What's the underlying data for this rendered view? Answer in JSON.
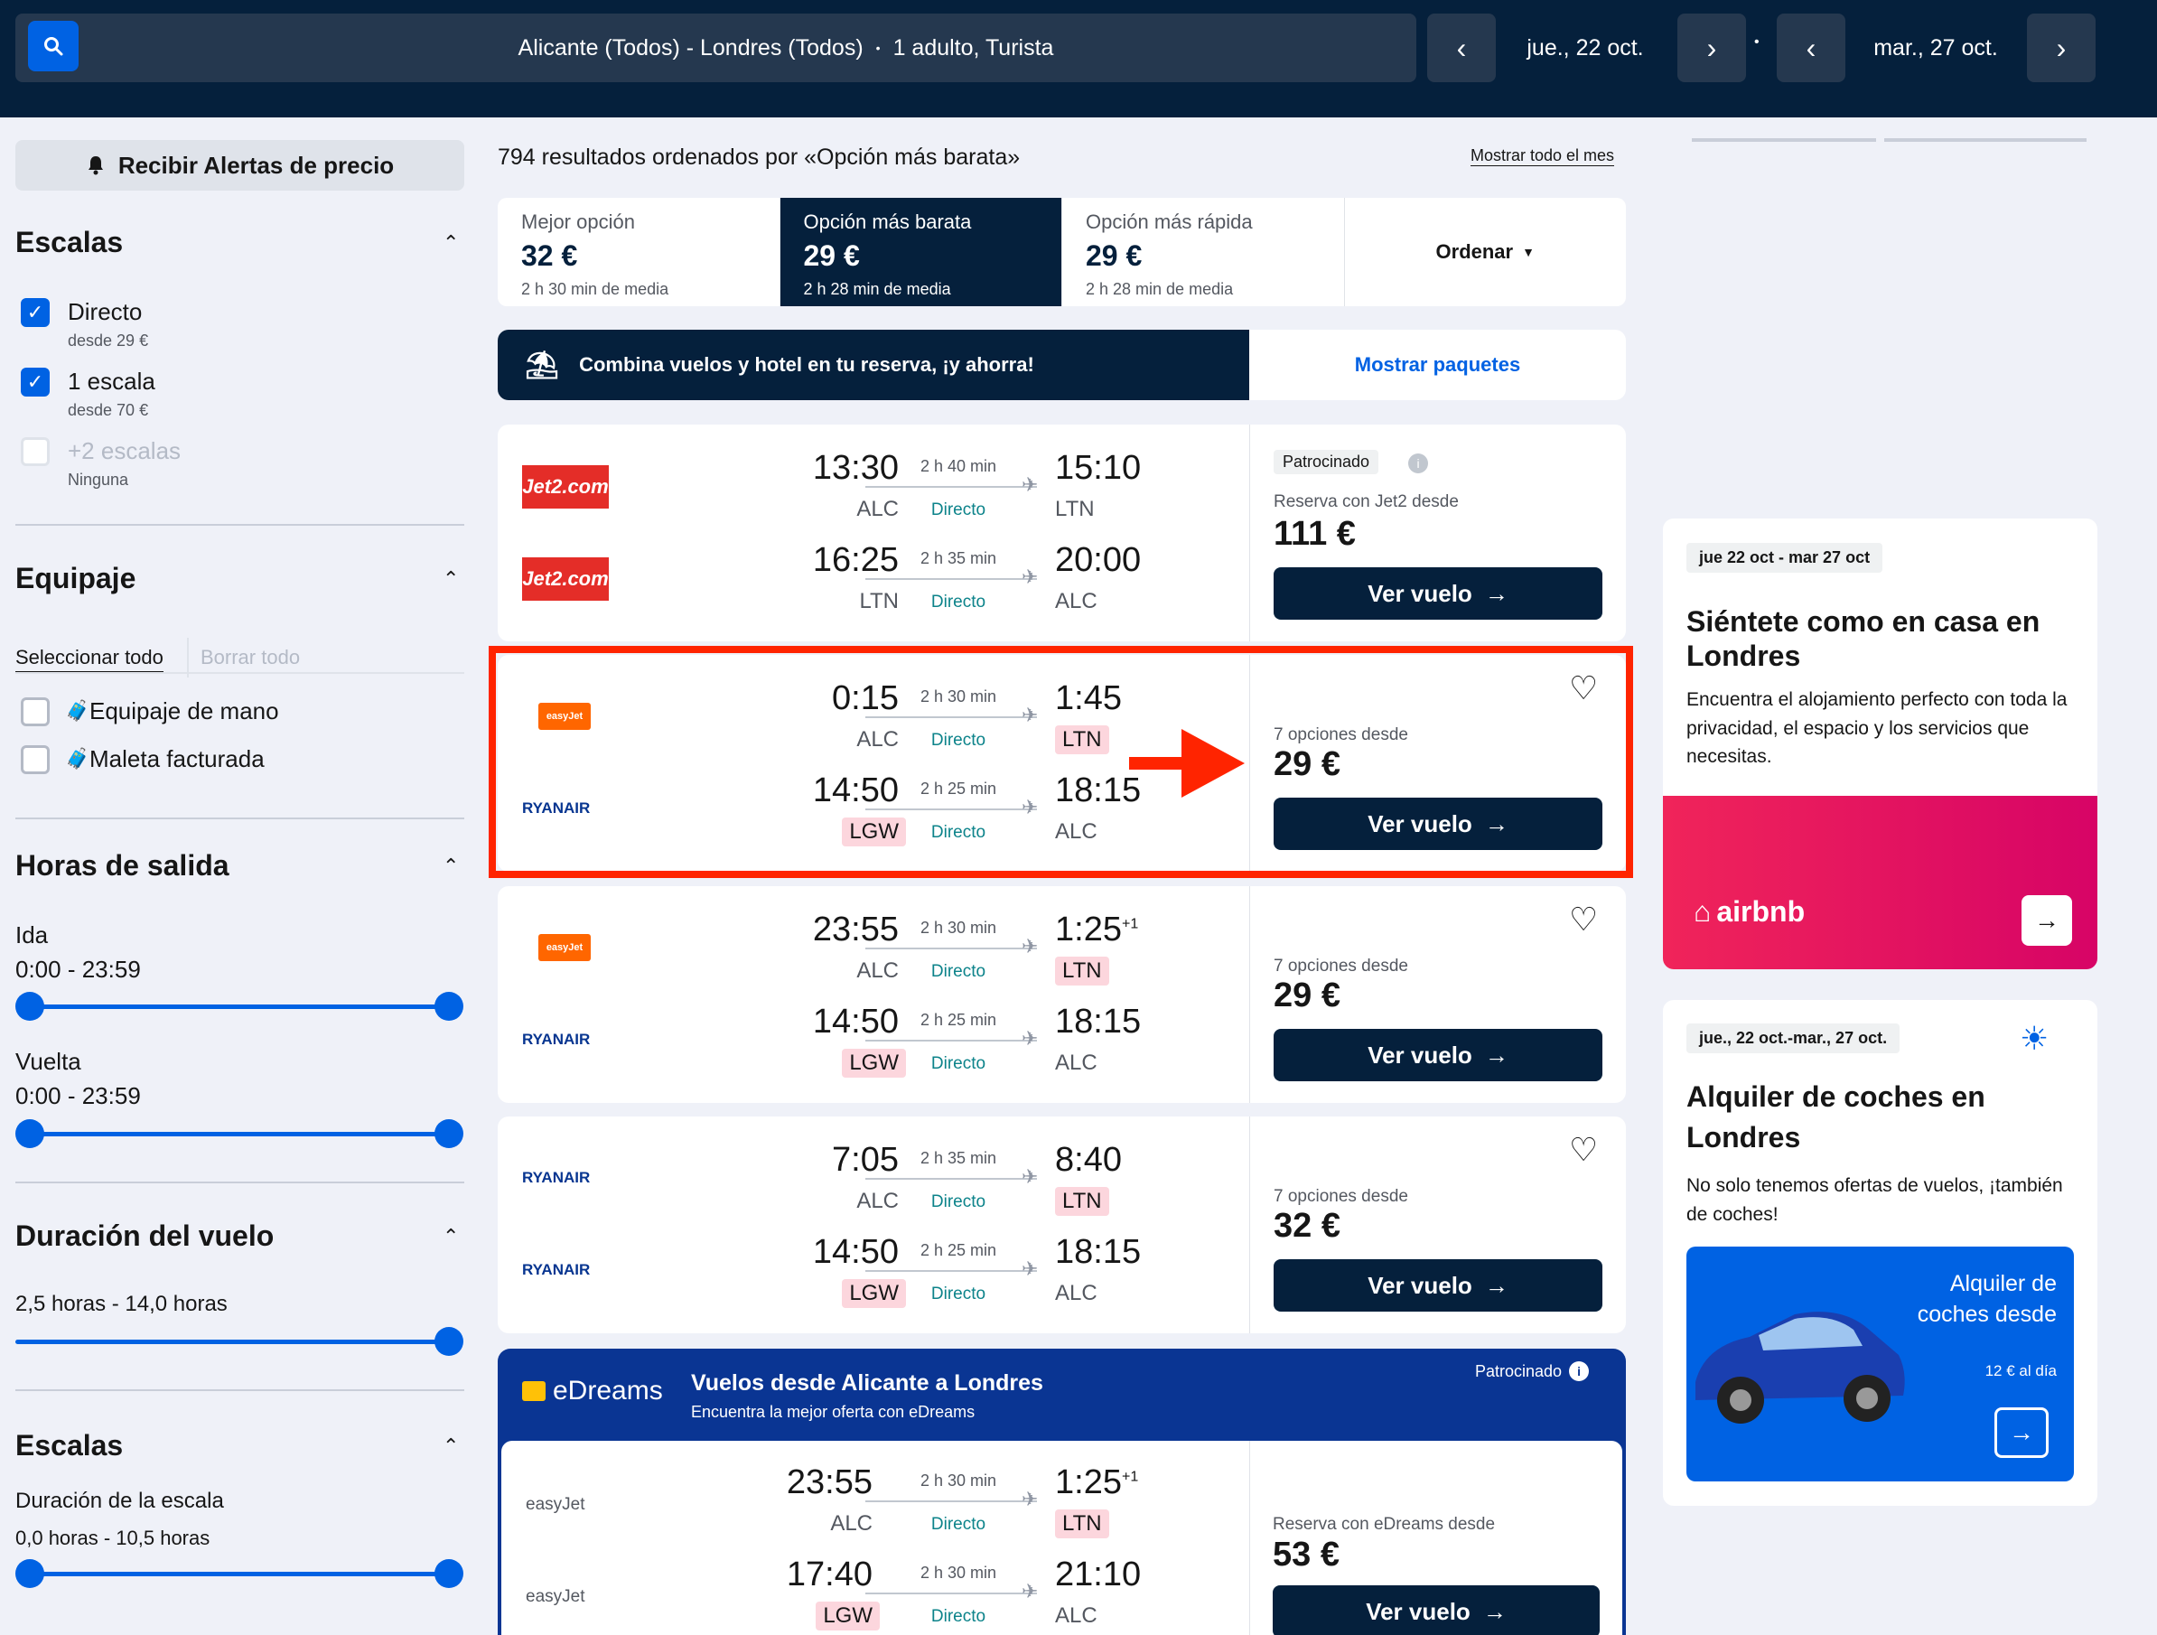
{
  "search": {
    "route": "Alicante (Todos) - Londres (Todos)",
    "passengers": "1 adulto, Turista",
    "depart_date": "jue., 22 oct.",
    "return_date": "mar., 27 oct."
  },
  "sidebar": {
    "alert_label": "Recibir Alertas de precio",
    "stops": {
      "title": "Escalas",
      "options": [
        {
          "label": "Directo",
          "sub": "desde 29 €",
          "checked": true
        },
        {
          "label": "1 escala",
          "sub": "desde 70 €",
          "checked": true
        },
        {
          "label": "+2 escalas",
          "sub": "Ninguna",
          "checked": false
        }
      ]
    },
    "baggage": {
      "title": "Equipaje",
      "select_all": "Seleccionar todo",
      "clear_all": "Borrar todo",
      "options": [
        "Equipaje de mano",
        "Maleta facturada"
      ]
    },
    "times": {
      "title": "Horas de salida",
      "outbound_label": "Ida",
      "outbound_range": "0:00 - 23:59",
      "return_label": "Vuelta",
      "return_range": "0:00 - 23:59"
    },
    "duration": {
      "title": "Duración del vuelo",
      "range": "2,5 horas - 14,0 horas"
    },
    "layover": {
      "title": "Escalas",
      "label": "Duración de la escala",
      "range": "0,0 horas - 10,5 horas"
    }
  },
  "results": {
    "summary": "794 resultados ordenados por «Opción más barata»",
    "show_month": "Mostrar todo el mes",
    "tabs": [
      {
        "label": "Mejor opción",
        "price": "32 €",
        "duration": "2 h 30 min de media"
      },
      {
        "label": "Opción más barata",
        "price": "29 €",
        "duration": "2 h 28 min de media"
      },
      {
        "label": "Opción más rápida",
        "price": "29 €",
        "duration": "2 h 28 min de media"
      }
    ],
    "sort_label": "Ordenar",
    "package_text": "Combina vuelos y hotel en tu reserva, ¡y ahorra!",
    "package_link": "Mostrar paquetes",
    "direct_label": "Directo",
    "view_flight": "Ver vuelo",
    "flights": [
      {
        "out": {
          "airline": "Jet2.com",
          "dep": "13:30",
          "dep_code": "ALC",
          "dur": "2 h 40 min",
          "arr": "15:10",
          "arr_code": "LTN"
        },
        "ret": {
          "airline": "Jet2.com",
          "dep": "16:25",
          "dep_code": "LTN",
          "dur": "2 h 35 min",
          "arr": "20:00",
          "arr_code": "ALC"
        },
        "sponsored": "Patrocinado",
        "desde": "Reserva con Jet2 desde",
        "price": "111 €"
      },
      {
        "out": {
          "airline": "easyJet",
          "dep": "0:15",
          "dep_code": "ALC",
          "dur": "2 h 30 min",
          "arr": "1:45",
          "arr_code": "LTN"
        },
        "ret": {
          "airline": "RYANAIR",
          "dep": "14:50",
          "dep_code": "LGW",
          "dur": "2 h 25 min",
          "arr": "18:15",
          "arr_code": "ALC"
        },
        "desde": "7 opciones desde",
        "price": "29 €"
      },
      {
        "out": {
          "airline": "easyJet",
          "dep": "23:55",
          "dep_code": "ALC",
          "dur": "2 h 30 min",
          "arr": "1:25",
          "arr_sup": "+1",
          "arr_code": "LTN"
        },
        "ret": {
          "airline": "RYANAIR",
          "dep": "14:50",
          "dep_code": "LGW",
          "dur": "2 h 25 min",
          "arr": "18:15",
          "arr_code": "ALC"
        },
        "desde": "7 opciones desde",
        "price": "29 €"
      },
      {
        "out": {
          "airline": "RYANAIR",
          "dep": "7:05",
          "dep_code": "ALC",
          "dur": "2 h 35 min",
          "arr": "8:40",
          "arr_code": "LTN"
        },
        "ret": {
          "airline": "RYANAIR",
          "dep": "14:50",
          "dep_code": "LGW",
          "dur": "2 h 25 min",
          "arr": "18:15",
          "arr_code": "ALC"
        },
        "desde": "7 opciones desde",
        "price": "32 €"
      }
    ],
    "edreams": {
      "brand": "eDreams",
      "title": "Vuelos desde Alicante a Londres",
      "subtitle": "Encuentra la mejor oferta con eDreams",
      "sponsored": "Patrocinado",
      "out": {
        "airline": "easyJet",
        "dep": "23:55",
        "dep_code": "ALC",
        "dur": "2 h 30 min",
        "arr": "1:25",
        "arr_sup": "+1",
        "arr_code": "LTN"
      },
      "ret": {
        "airline": "easyJet",
        "dep": "17:40",
        "dep_code": "LGW",
        "dur": "2 h 30 min",
        "arr": "21:10",
        "arr_code": "ALC"
      },
      "desde": "Reserva con eDreams desde",
      "price": "53 €"
    }
  },
  "ads": {
    "airbnb": {
      "dates": "jue 22 oct - mar 27 oct",
      "title": "Siéntete como en casa en Londres",
      "text": "Encuentra el alojamiento perfecto con toda la privacidad, el espacio y los servicios que necesitas.",
      "brand": "airbnb"
    },
    "cars": {
      "dates": "jue., 22 oct.-mar., 27 oct.",
      "title": "Alquiler de coches en Londres",
      "text": "No solo tenemos ofertas de vuelos, ¡también de coches!",
      "banner_title": "Alquiler de coches desde",
      "banner_price": "12 € al día"
    }
  },
  "colors": {
    "navy": "#05203c",
    "blue": "#0062e3",
    "highlight": "#ff2400",
    "airbnb": "#e61e4d"
  }
}
